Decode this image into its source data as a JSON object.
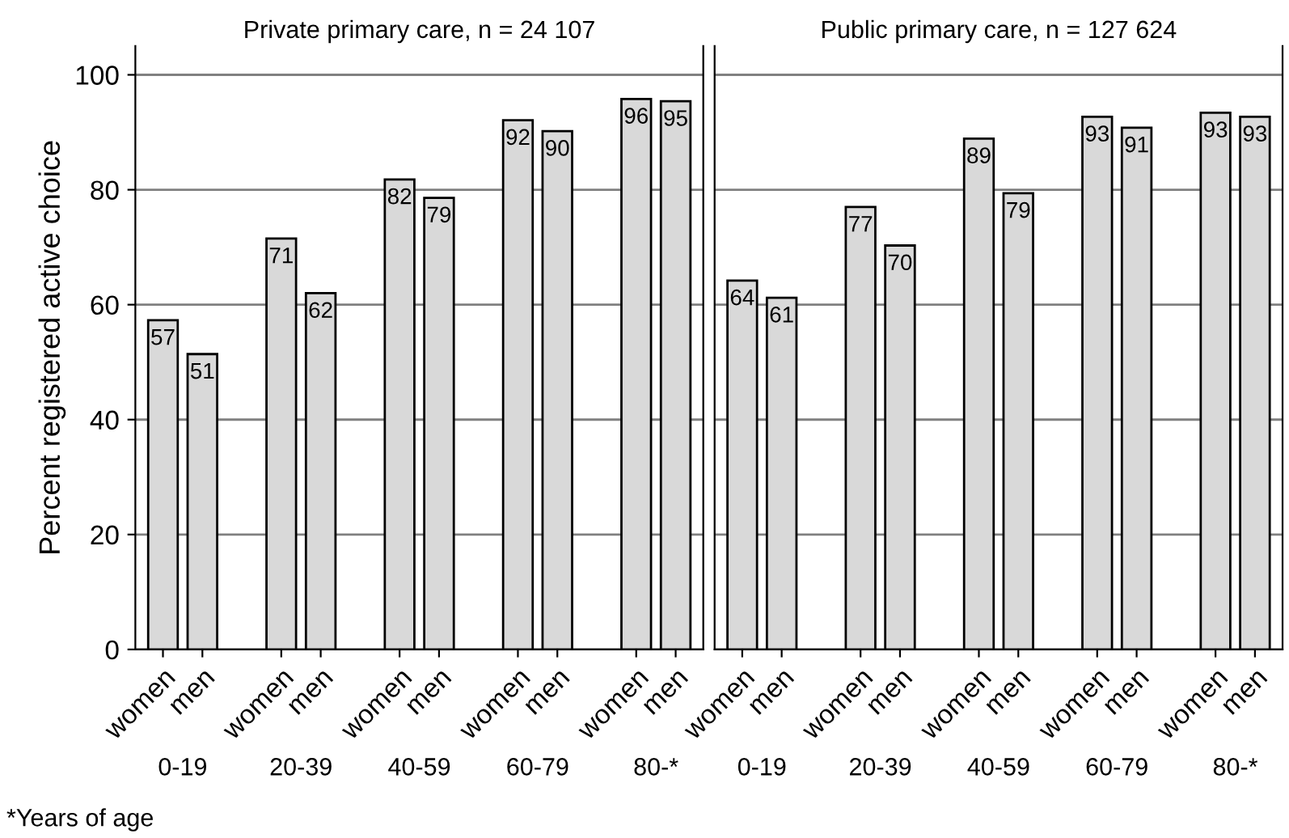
{
  "chart_data": [
    {
      "type": "bar",
      "title": "Private primary care, n = 24 107",
      "ylabel": "Percent registered active choice",
      "categories": [
        "women",
        "men",
        null,
        "women",
        "men",
        null,
        "women",
        "men",
        null,
        "women",
        "men",
        null,
        "women",
        "men"
      ],
      "values": [
        57.3,
        51.4,
        null,
        71.5,
        62.0,
        null,
        81.8,
        78.6,
        null,
        92.1,
        90.2,
        null,
        95.8,
        95.4
      ],
      "value_labels": [
        "57",
        "51",
        null,
        "71",
        "62",
        null,
        "82",
        "79",
        null,
        "92",
        "90",
        null,
        "96",
        "95"
      ],
      "color": "#d9d9d9",
      "annotations": [
        "0-19",
        "20-39",
        "40-59",
        "60-79",
        "80-*",
        "*Years of age"
      ],
      "ylim": [
        0,
        105
      ],
      "yticks": [
        0,
        20,
        40,
        60,
        80,
        100
      ],
      "grid": "y"
    },
    {
      "type": "bar",
      "title": "Public primary care, n = 127 624",
      "categories": [
        "women",
        "men",
        null,
        "women",
        "men",
        null,
        "women",
        "men",
        null,
        "women",
        "men",
        null,
        "women",
        "men"
      ],
      "values": [
        64.2,
        61.2,
        null,
        77.0,
        70.3,
        null,
        88.9,
        79.4,
        null,
        92.7,
        90.8,
        null,
        93.4,
        92.7
      ],
      "value_labels": [
        "64",
        "61",
        null,
        "77",
        "70",
        null,
        "89",
        "79",
        null,
        "93",
        "91",
        null,
        "93",
        "93"
      ],
      "color": "#d9d9d9",
      "annotations": [
        "0-19",
        "20-39",
        "40-59",
        "60-79",
        "80-*"
      ],
      "ylim": [
        0,
        105
      ],
      "yticks": [
        0,
        20,
        40,
        60,
        80,
        100
      ],
      "grid": "y",
      "tick_labels": "x"
    }
  ]
}
